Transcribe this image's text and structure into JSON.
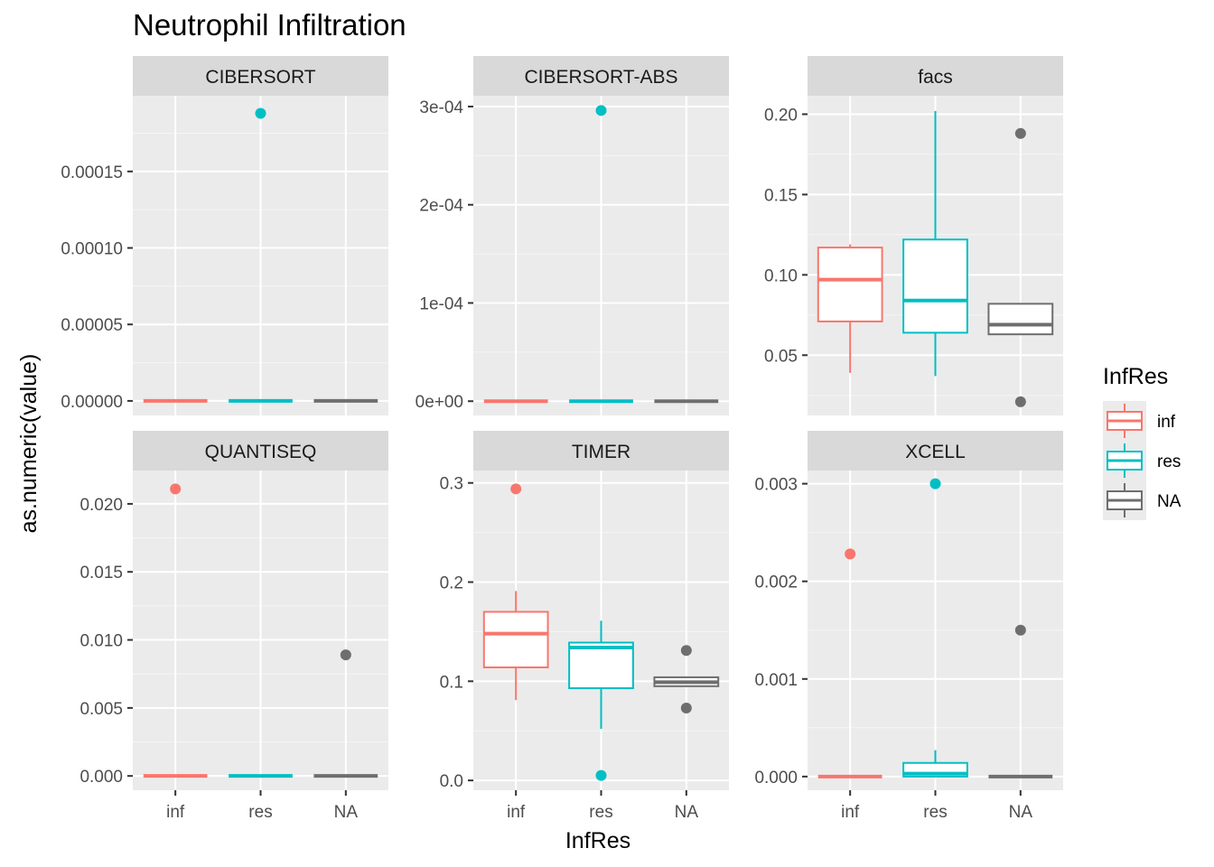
{
  "chart_data": {
    "type": "box",
    "title": "Neutrophil Infiltration",
    "xlabel": "InfRes",
    "ylabel": "as.numeric(value)",
    "categories": [
      "inf",
      "res",
      "NA"
    ],
    "legend": {
      "title": "InfRes",
      "position": "right",
      "entries": [
        {
          "label": "inf",
          "color": "#F8766D"
        },
        {
          "label": "res",
          "color": "#00BFC4"
        },
        {
          "label": "NA",
          "color": "#6e6e6e"
        }
      ]
    },
    "panels": [
      {
        "name": "CIBERSORT",
        "ylim": [
          -9.5e-06,
          0.0001995
        ],
        "yticks": [
          0,
          5e-05,
          0.0001,
          0.00015
        ],
        "yticklabels": [
          "0.00000",
          "0.00005",
          "0.00010",
          "0.00015"
        ],
        "show_x_labels": false,
        "groups": [
          {
            "category": "inf",
            "min": 0,
            "q1": 0,
            "median": 0,
            "q3": 0,
            "max": 0,
            "outliers": []
          },
          {
            "category": "res",
            "min": 0,
            "q1": 0,
            "median": 0,
            "q3": 0,
            "max": 0,
            "outliers": [
              0.000188
            ]
          },
          {
            "category": "NA",
            "min": 0,
            "q1": 0,
            "median": 0,
            "q3": 0,
            "max": 0,
            "outliers": []
          }
        ]
      },
      {
        "name": "CIBERSORT-ABS",
        "ylim": [
          -1.45e-05,
          0.000311
        ],
        "yticks": [
          0,
          0.0001,
          0.0002,
          0.0003
        ],
        "yticklabels": [
          "0e+00",
          "1e-04",
          "2e-04",
          "3e-04"
        ],
        "show_x_labels": false,
        "groups": [
          {
            "category": "inf",
            "min": 0,
            "q1": 0,
            "median": 0,
            "q3": 0,
            "max": 0,
            "outliers": []
          },
          {
            "category": "res",
            "min": 0,
            "q1": 0,
            "median": 0,
            "q3": 0,
            "max": 0,
            "outliers": [
              0.000296
            ]
          },
          {
            "category": "NA",
            "min": 0,
            "q1": 0,
            "median": 0,
            "q3": 0,
            "max": 0,
            "outliers": []
          }
        ]
      },
      {
        "name": "facs",
        "ylim": [
          0.0125,
          0.2115
        ],
        "yticks": [
          0.05,
          0.1,
          0.15,
          0.2
        ],
        "yticklabels": [
          "0.05",
          "0.10",
          "0.15",
          "0.20"
        ],
        "show_x_labels": false,
        "groups": [
          {
            "category": "inf",
            "min": 0.039,
            "q1": 0.071,
            "median": 0.097,
            "q3": 0.117,
            "max": 0.119,
            "outliers": []
          },
          {
            "category": "res",
            "min": 0.037,
            "q1": 0.064,
            "median": 0.084,
            "q3": 0.122,
            "max": 0.202,
            "outliers": []
          },
          {
            "category": "NA",
            "min": 0.063,
            "q1": 0.063,
            "median": 0.069,
            "q3": 0.082,
            "max": 0.082,
            "outliers": [
              0.188,
              0.021
            ]
          }
        ]
      },
      {
        "name": "QUANTISEQ",
        "ylim": [
          -0.00105,
          0.02245
        ],
        "yticks": [
          0,
          0.005,
          0.01,
          0.015,
          0.02
        ],
        "yticklabels": [
          "0.000",
          "0.005",
          "0.010",
          "0.015",
          "0.020"
        ],
        "show_x_labels": true,
        "groups": [
          {
            "category": "inf",
            "min": 0,
            "q1": 0,
            "median": 0,
            "q3": 0,
            "max": 0,
            "outliers": [
              0.0211
            ]
          },
          {
            "category": "res",
            "min": 0,
            "q1": 0,
            "median": 0,
            "q3": 0,
            "max": 0,
            "outliers": []
          },
          {
            "category": "NA",
            "min": 0,
            "q1": 0,
            "median": 0,
            "q3": 0,
            "max": 0,
            "outliers": [
              0.0089
            ]
          }
        ]
      },
      {
        "name": "TIMER",
        "ylim": [
          -0.0099,
          0.3125
        ],
        "yticks": [
          0,
          0.1,
          0.2,
          0.3
        ],
        "yticklabels": [
          "0.0",
          "0.1",
          "0.2",
          "0.3"
        ],
        "show_x_labels": true,
        "groups": [
          {
            "category": "inf",
            "min": 0.081,
            "q1": 0.114,
            "median": 0.148,
            "q3": 0.17,
            "max": 0.191,
            "outliers": [
              0.294
            ]
          },
          {
            "category": "res",
            "min": 0.052,
            "q1": 0.093,
            "median": 0.134,
            "q3": 0.139,
            "max": 0.161,
            "outliers": [
              0.005
            ]
          },
          {
            "category": "NA",
            "min": 0.095,
            "q1": 0.095,
            "median": 0.099,
            "q3": 0.104,
            "max": 0.104,
            "outliers": [
              0.131,
              0.073
            ]
          }
        ]
      },
      {
        "name": "XCELL",
        "ylim": [
          -0.00014,
          0.003135
        ],
        "yticks": [
          0,
          0.001,
          0.002,
          0.003
        ],
        "yticklabels": [
          "0.000",
          "0.001",
          "0.002",
          "0.003"
        ],
        "show_x_labels": true,
        "groups": [
          {
            "category": "inf",
            "min": 0,
            "q1": 0,
            "median": 0,
            "q3": 0,
            "max": 0,
            "outliers": [
              0.00228
            ]
          },
          {
            "category": "res",
            "min": 0,
            "q1": 0,
            "median": 3e-05,
            "q3": 0.00014,
            "max": 0.00027,
            "outliers": [
              0.003
            ]
          },
          {
            "category": "NA",
            "min": 0,
            "q1": 0,
            "median": 0,
            "q3": 0,
            "max": 0,
            "outliers": [
              0.0015
            ]
          }
        ]
      }
    ]
  }
}
